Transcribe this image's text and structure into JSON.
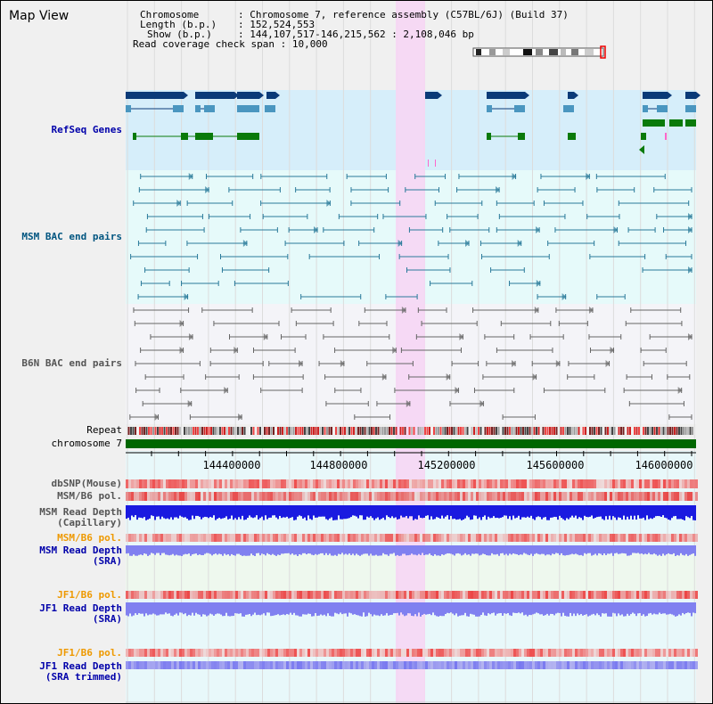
{
  "header": {
    "title": "Map View"
  },
  "info": {
    "chromosome_key": "Chromosome",
    "chromosome_val": "Chromosome 7, reference assembly (C57BL/6J) (Build 37)",
    "length_key": "Length (b.p.)",
    "length_val": "152,524,553",
    "show_key": "Show (b.p.)",
    "show_val": "144,107,517-146,215,562 : 2,108,046 bp",
    "span_key": "Read coverage check span",
    "span_val": "10,000"
  },
  "tracks": {
    "refseq": "RefSeq Genes",
    "msm_bac": "MSM BAC end pairs",
    "b6n_bac": "B6N BAC end pairs",
    "repeat": "Repeat",
    "chrom": "chromosome 7",
    "dbsnp": "dbSNP(Mouse)",
    "msm_b6_pol1": "MSM/B6 pol.",
    "msm_depth_cap": "MSM Read Depth\n(Capillary)",
    "msm_b6_pol2": "MSM/B6 pol.",
    "msm_depth_sra": "MSM Read Depth\n(SRA)",
    "jf1_b6_pol1": "JF1/B6 pol.",
    "jf1_depth_sra": "JF1 Read Depth\n(SRA)",
    "jf1_b6_pol2": "JF1/B6 pol.",
    "jf1_depth_trim": "JF1 Read Depth\n(SRA trimmed)"
  },
  "axis": {
    "ticks": [
      "144400000",
      "144800000",
      "145200000",
      "145600000",
      "146000000"
    ]
  },
  "colors": {
    "gene_dark": "#0a3a78",
    "gene_light": "#4a96c0",
    "gene_green": "#0a7a0a",
    "refseq_bg": "#d6eefa",
    "bac_bg": "#e6fafa",
    "highlight": "#f6d6f4",
    "msm_bac": "#2a7a9a",
    "b6n_bac": "#666666",
    "chrom_bar": "#006600",
    "depth_dark": "#1a1ae0",
    "depth_light": "#8080f0"
  }
}
